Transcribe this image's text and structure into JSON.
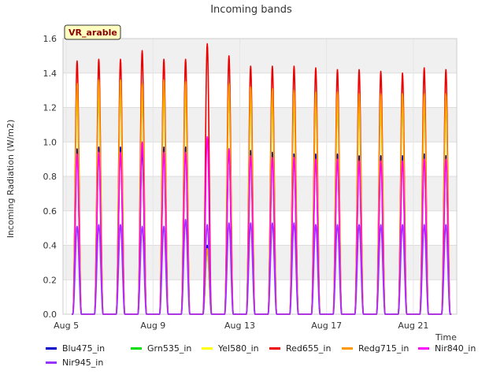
{
  "chart_data": {
    "type": "line",
    "title": "Incoming bands",
    "ylabel": "Incoming Radiation (W/m2)",
    "xlabel": "Time",
    "annotation": "VR_arable",
    "ylim": [
      0.0,
      1.6
    ],
    "xlim_days": [
      "Aug 5",
      "Aug 23"
    ],
    "yticks": [
      "0.0",
      "0.2",
      "0.4",
      "0.6",
      "0.8",
      "1.0",
      "1.2",
      "1.4",
      "1.6"
    ],
    "xticks": [
      {
        "label": "Aug 5",
        "day": 5
      },
      {
        "label": "Aug 9",
        "day": 9
      },
      {
        "label": "Aug 13",
        "day": 13
      },
      {
        "label": "Aug 17",
        "day": 17
      },
      {
        "label": "Aug 21",
        "day": 21
      }
    ],
    "days": [
      5,
      6,
      7,
      8,
      9,
      10,
      11,
      12,
      13,
      14,
      15,
      16,
      17,
      18,
      19,
      20,
      21,
      22
    ],
    "grid": true,
    "legend_placement": "bottom",
    "series": [
      {
        "name": "Blu475_in",
        "color": "#0000cc",
        "daily_peak": [
          0.96,
          0.97,
          0.97,
          0.96,
          0.97,
          0.97,
          0.4,
          0.96,
          0.95,
          0.94,
          0.93,
          0.93,
          0.93,
          0.92,
          0.92,
          0.92,
          0.93,
          0.92
        ]
      },
      {
        "name": "Grn535_in",
        "color": "#00dd00",
        "daily_peak": [
          1.28,
          1.3,
          1.3,
          1.28,
          1.3,
          1.29,
          0.37,
          1.28,
          1.26,
          1.25,
          1.24,
          1.23,
          1.23,
          1.22,
          1.22,
          1.22,
          1.22,
          1.22
        ]
      },
      {
        "name": "Yel580_in",
        "color": "#ffff00",
        "daily_peak": [
          1.3,
          1.32,
          1.32,
          1.3,
          1.32,
          1.31,
          0.38,
          1.3,
          1.28,
          1.27,
          1.26,
          1.25,
          1.25,
          1.24,
          1.24,
          1.24,
          1.24,
          1.24
        ]
      },
      {
        "name": "Red655_in",
        "color": "#ee0000",
        "daily_peak": [
          1.47,
          1.48,
          1.48,
          1.53,
          1.48,
          1.48,
          1.57,
          1.5,
          1.44,
          1.44,
          1.44,
          1.43,
          1.42,
          1.42,
          1.41,
          1.4,
          1.43,
          1.42
        ]
      },
      {
        "name": "Redg715_in",
        "color": "#ff9900",
        "daily_peak": [
          1.34,
          1.36,
          1.36,
          1.34,
          1.36,
          1.35,
          0.38,
          1.34,
          1.32,
          1.31,
          1.3,
          1.29,
          1.29,
          1.28,
          1.28,
          1.28,
          1.28,
          1.28
        ]
      },
      {
        "name": "Nir840_in",
        "color": "#ff00ff",
        "daily_peak": [
          0.93,
          0.94,
          0.94,
          1.0,
          0.94,
          0.94,
          1.03,
          0.96,
          0.92,
          0.91,
          0.91,
          0.9,
          0.9,
          0.89,
          0.89,
          0.89,
          0.9,
          0.9
        ]
      },
      {
        "name": "Nir945_in",
        "color": "#9933ff",
        "daily_peak": [
          0.51,
          0.52,
          0.52,
          0.51,
          0.51,
          0.55,
          0.52,
          0.53,
          0.53,
          0.53,
          0.53,
          0.52,
          0.52,
          0.52,
          0.52,
          0.52,
          0.52,
          0.52
        ]
      }
    ]
  }
}
